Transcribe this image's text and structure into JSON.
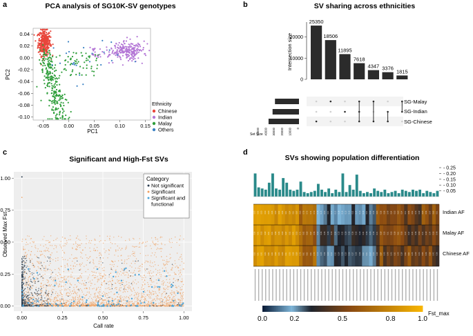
{
  "panel_labels": [
    "a",
    "b",
    "c",
    "d"
  ],
  "colors": {
    "chinese": "#e8463b",
    "indian": "#b477d6",
    "malay": "#2e9e3a",
    "others": "#3b82c4",
    "bar_dark": "#2b2b2b",
    "dot_gray": "#cfcfcf",
    "notsig": "#2c3e50",
    "sig": "#f0a060",
    "func": "#4aa3d8",
    "teal": "#2a8a8a",
    "cb_low": "#0b1e3a",
    "cb_mid1": "#7fb6d9",
    "cb_mid2": "#8a4a12",
    "cb_high": "#f7b500"
  },
  "chart_data": [
    {
      "panel": "a",
      "type": "scatter",
      "title": "PCA analysis of SG10K-SV genotypes",
      "xlabel": "PC1",
      "ylabel": "PC2",
      "xlim": [
        -0.07,
        0.16
      ],
      "ylim": [
        -0.105,
        0.05
      ],
      "xticks": [
        -0.05,
        0.0,
        0.05,
        0.1,
        0.15
      ],
      "xtick_labels": [
        "-0.05",
        "0.00",
        "0.05",
        "0.10",
        "0.15"
      ],
      "yticks": [
        0.04,
        0.02,
        0.0,
        -0.02,
        -0.04,
        -0.06,
        -0.08,
        -0.1
      ],
      "ytick_labels": [
        "0.04",
        "0.02",
        "0.00",
        "-0.02",
        "-0.04",
        "-0.06",
        "-0.08",
        "-0.10"
      ],
      "legend_title": "Ethnicity",
      "legend_position": "right",
      "groups": [
        {
          "name": "Chinese",
          "color": "#e8463b",
          "n": 320,
          "mean": [
            -0.048,
            0.026
          ],
          "sd": [
            0.006,
            0.011
          ]
        },
        {
          "name": "Indian",
          "color": "#b477d6",
          "n": 240,
          "mean": [
            0.115,
            0.012
          ],
          "sd": [
            0.016,
            0.008
          ]
        },
        {
          "name": "Malay",
          "color": "#2e9e3a",
          "n": 320,
          "mean": [
            -0.035,
            -0.04
          ],
          "sd": [
            0.012,
            0.03
          ]
        },
        {
          "name": "Others",
          "color": "#3b82c4",
          "n": 25,
          "mean": [
            0.02,
            0.0
          ],
          "sd": [
            0.04,
            0.02
          ]
        }
      ]
    },
    {
      "panel": "b",
      "type": "bar",
      "title": "SV sharing across ethnicities",
      "ylabel": "Intersection size",
      "ylim": [
        0,
        27000
      ],
      "yticks": [
        0,
        10000,
        20000
      ],
      "ytick_labels": [
        "0",
        "10000",
        "20000"
      ],
      "values": [
        25350,
        18506,
        11895,
        7618,
        4347,
        3376,
        1815
      ],
      "value_labels": [
        "25350",
        "18506",
        "11895",
        "7618",
        "4347",
        "3376",
        "1815"
      ],
      "sets": [
        "SG-Malay",
        "SG-Indian",
        "SG-Chinese"
      ],
      "set_sizes": [
        30000,
        33000,
        38000
      ],
      "set_size_label": "Set Size",
      "set_size_ticks": [
        "50000",
        "40000",
        "30000",
        "20000",
        "10000",
        "0"
      ],
      "membership": [
        [
          2
        ],
        [
          0
        ],
        [
          1
        ],
        [
          0,
          1,
          2
        ],
        [
          0,
          2
        ],
        [
          1,
          2
        ],
        [
          0,
          1
        ]
      ]
    },
    {
      "panel": "c",
      "type": "scatter",
      "title": "Significant and High-Fst SVs",
      "xlabel": "Call rate",
      "ylabel": "Observed Max Fst",
      "xlim": [
        -0.05,
        1.05
      ],
      "ylim": [
        -0.04,
        1.05
      ],
      "xticks": [
        0.0,
        0.25,
        0.5,
        0.75,
        1.0
      ],
      "xtick_labels": [
        "0.00",
        "0.25",
        "0.50",
        "0.75",
        "1.00"
      ],
      "yticks": [
        0.0,
        0.25,
        0.5,
        0.75,
        1.0
      ],
      "ytick_labels": [
        "0.00",
        "0.25",
        "0.50",
        "0.75",
        "1.00"
      ],
      "legend_title": "Category",
      "legend_position": "top-right",
      "categories": [
        "Not significant",
        "Significant",
        "Significant and functional"
      ],
      "category_colors": [
        "#2c3e50",
        "#f0a060",
        "#4aa3d8"
      ],
      "n_points": [
        700,
        2600,
        90
      ]
    },
    {
      "panel": "d",
      "type": "heatmap",
      "title": "SVs showing population differentiation",
      "rows": [
        "Indian AF",
        "Malay AF",
        "Chinese AF"
      ],
      "bar_yticks": [
        0.05,
        0.1,
        0.15,
        0.2,
        0.25
      ],
      "bar_ytick_labels": [
        "0.05",
        "0.10",
        "0.15",
        "0.20",
        "0.25"
      ],
      "bar_values": [
        0.2,
        0.08,
        0.07,
        0.06,
        0.12,
        0.2,
        0.07,
        0.06,
        0.16,
        0.12,
        0.06,
        0.05,
        0.06,
        0.13,
        0.04,
        0.03,
        0.04,
        0.05,
        0.11,
        0.06,
        0.04,
        0.07,
        0.03,
        0.06,
        0.04,
        0.2,
        0.04,
        0.1,
        0.06,
        0.19,
        0.05,
        0.03,
        0.04,
        0.03,
        0.07,
        0.05,
        0.04,
        0.06,
        0.03,
        0.04,
        0.05,
        0.03,
        0.06,
        0.05,
        0.04,
        0.06,
        0.05,
        0.06,
        0.03,
        0.05,
        0.04,
        0.03,
        0.05
      ],
      "colorbar_label": "Fst_max",
      "colorbar_ticks": [
        0.0,
        0.2,
        0.5,
        0.8,
        1.0
      ],
      "colorbar_tick_labels": [
        "0.0",
        "0.2",
        "0.5",
        "0.8",
        "1.0"
      ]
    }
  ]
}
